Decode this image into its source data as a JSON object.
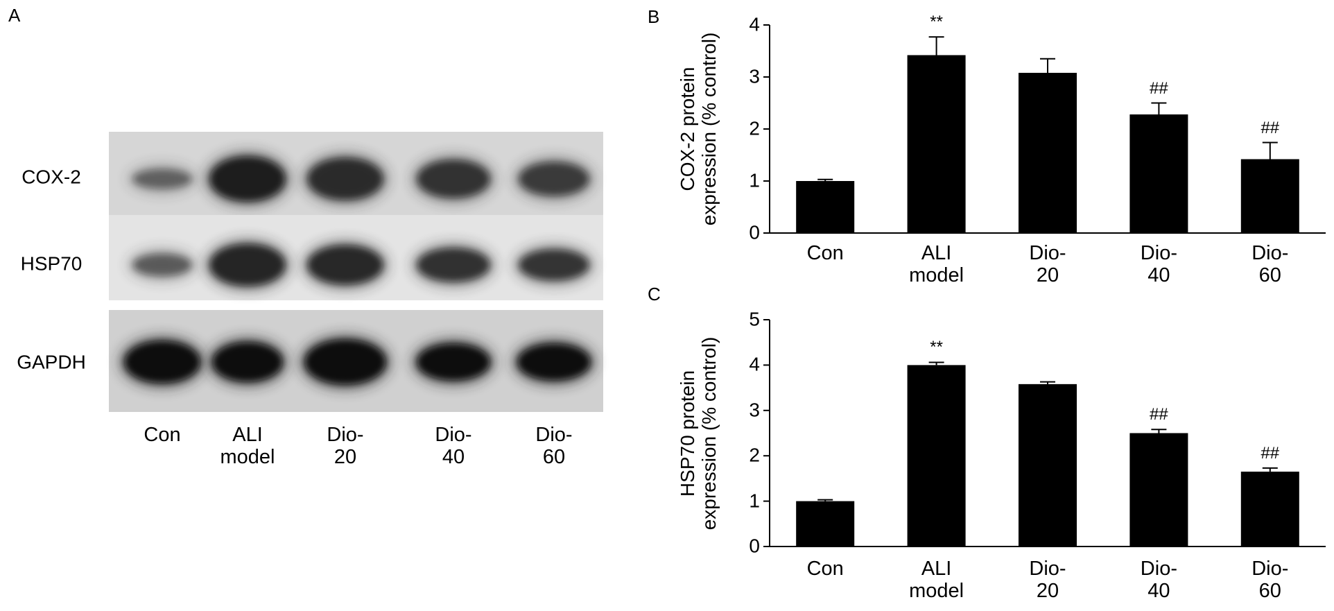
{
  "blot": {
    "panel_label": "A",
    "rows": [
      "COX-2",
      "HSP70",
      "GAPDH"
    ],
    "lanes": [
      "Con",
      "ALI model",
      "Dio-20",
      "Dio-40",
      "Dio-60"
    ]
  },
  "chart_data": [
    {
      "type": "bar",
      "panel_label": "B",
      "y_label": "COX-2 protein expression (% control)",
      "categories": [
        "Con",
        "ALI model",
        "Dio-20",
        "Dio-40",
        "Dio-60"
      ],
      "values": [
        1.0,
        3.42,
        3.08,
        2.28,
        1.42
      ],
      "errors": [
        0.03,
        0.35,
        0.27,
        0.22,
        0.32
      ],
      "color": "#000000",
      "ylim": [
        0,
        4
      ],
      "yticks": [
        0,
        1,
        2,
        3,
        4
      ],
      "annotations": [
        {
          "label": "**",
          "x": "ALI model"
        },
        {
          "label": "##",
          "x": "Dio-40"
        },
        {
          "label": "##",
          "x": "Dio-60"
        }
      ]
    },
    {
      "type": "bar",
      "panel_label": "C",
      "y_label": "HSP70 protein expression (% control)",
      "categories": [
        "Con",
        "ALI model",
        "Dio-20",
        "Dio-40",
        "Dio-60"
      ],
      "values": [
        1.0,
        4.0,
        3.58,
        2.5,
        1.65
      ],
      "errors": [
        0.03,
        0.06,
        0.05,
        0.08,
        0.08
      ],
      "color": "#000000",
      "ylim": [
        0,
        5
      ],
      "yticks": [
        0,
        1,
        2,
        3,
        4,
        5
      ],
      "annotations": [
        {
          "label": "**",
          "x": "ALI model"
        },
        {
          "label": "##",
          "x": "Dio-40"
        },
        {
          "label": "##",
          "x": "Dio-60"
        }
      ]
    }
  ]
}
